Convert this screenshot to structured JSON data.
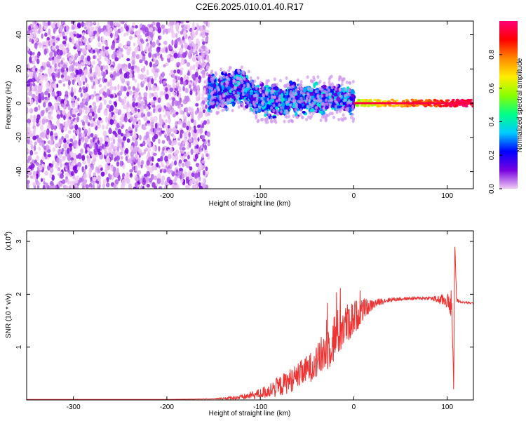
{
  "figure": {
    "title": "C2E6.2025.010.01.40.R17"
  },
  "chart_data": [
    {
      "type": "heatmap",
      "title": "C2E6.2025.010.01.40.R17",
      "xlabel": "Height of straight line (km)",
      "ylabel": "Frequency (Hz)",
      "xlim": [
        -350,
        128
      ],
      "ylim": [
        -50,
        48
      ],
      "xticks": [
        -300,
        -200,
        -100,
        0,
        100
      ],
      "yticks": [
        -40,
        -20,
        0,
        20,
        40
      ],
      "colorbar": {
        "label": "Normalized spectral amplitude",
        "range": [
          0,
          1
        ],
        "ticks": [
          0.0,
          0.2,
          0.4,
          0.6,
          0.8
        ],
        "colormap": [
          "#f0ccf4",
          "#7700e0",
          "#0000ff",
          "#00ccff",
          "#00ff88",
          "#88ff00",
          "#ffee00",
          "#ff8800",
          "#ff0000",
          "#ff0077"
        ]
      },
      "regions": [
        {
          "x_range": [
            -350,
            -155
          ],
          "freq_range": [
            -50,
            48
          ],
          "description_level": "noise",
          "amplitude": [
            0.0,
            0.12
          ]
        },
        {
          "x_range": [
            -155,
            0
          ],
          "freq_center_km": [
            [
              -155,
              6
            ],
            [
              -120,
              9
            ],
            [
              -100,
              1
            ],
            [
              -60,
              2
            ],
            [
              -20,
              3
            ],
            [
              0,
              1
            ]
          ],
          "freq_halfwidth": 6,
          "amplitude": [
            0.1,
            0.4
          ]
        },
        {
          "x_range": [
            0,
            128
          ],
          "freq_center": 0,
          "freq_halfwidth": 2,
          "amplitude": [
            0.6,
            1.0
          ]
        }
      ]
    },
    {
      "type": "line",
      "xlabel": "Height of straight line (km)",
      "ylabel": "SNR (10 * v/v)",
      "y_multiplier": "(x10",
      "y_multiplier_exp": "4",
      "y_multiplier_close": ")",
      "xlim": [
        -350,
        128
      ],
      "ylim": [
        0,
        3.2
      ],
      "xticks": [
        -300,
        -200,
        -100,
        0,
        100
      ],
      "yticks": [
        1,
        2,
        3
      ],
      "color": "#ee3333",
      "series": [
        {
          "x": [
            -350,
            -300,
            -250,
            -200,
            -150,
            -120,
            -100,
            -80,
            -60,
            -40,
            -30,
            -20,
            -10,
            0,
            10,
            20,
            30,
            40,
            60,
            80,
            90,
            100,
            105,
            107,
            108,
            110,
            115,
            128
          ],
          "y": [
            0.01,
            0.01,
            0.01,
            0.01,
            0.02,
            0.05,
            0.12,
            0.25,
            0.45,
            0.7,
            0.95,
            1.2,
            1.4,
            1.55,
            1.7,
            1.8,
            1.87,
            1.9,
            1.92,
            1.93,
            1.9,
            1.88,
            1.7,
            0.1,
            3.0,
            1.9,
            1.85,
            1.83
          ],
          "noise": [
            0,
            0,
            0,
            0,
            0.005,
            0.05,
            0.1,
            0.2,
            0.25,
            0.3,
            0.45,
            0.5,
            0.4,
            0.35,
            0.2,
            0.1,
            0.06,
            0.04,
            0.03,
            0.03,
            0.08,
            0.15,
            0.2,
            0.05,
            0.2,
            0.05,
            0.02,
            0.02
          ]
        }
      ]
    }
  ]
}
